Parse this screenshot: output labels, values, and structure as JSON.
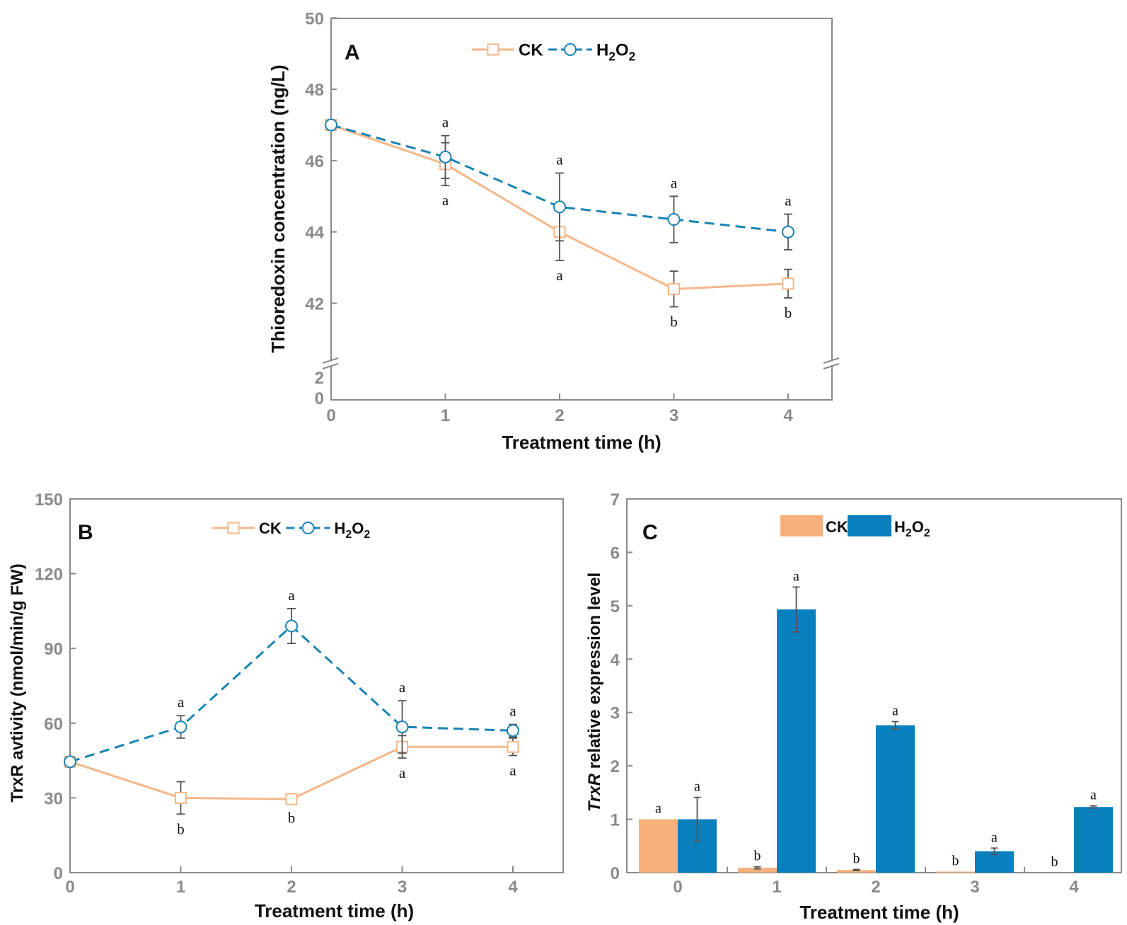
{
  "colors": {
    "ck_line": "#f5b78a",
    "ck_bar": "#f7b07a",
    "h2o2_line": "#1a83b4",
    "h2o2_bar": "#0a7fbe",
    "axis": "#8a8a8a",
    "tick_label": "#8a8a8a",
    "text": "#111111",
    "error": "#555555"
  },
  "chart_data": [
    {
      "panel": "A",
      "type": "line",
      "panel_label": "A",
      "xlabel": "Treatment time (h)",
      "ylabel": "Thioredoxin concentration  (ng/L)",
      "x": [
        0,
        1,
        2,
        3,
        4
      ],
      "x_tick_labels": [
        "0",
        "1",
        "2",
        "3",
        "4"
      ],
      "y_axis_break": true,
      "y_tick_labels_upper": [
        "42",
        "44",
        "46",
        "48",
        "50"
      ],
      "y_tick_labels_lower": [
        "0",
        "2"
      ],
      "ylim_upper": [
        40.5,
        50
      ],
      "ylim_lower": [
        0,
        2.7
      ],
      "legend": {
        "placement": "top-center",
        "entries": [
          {
            "series": "CK",
            "label": "CK"
          },
          {
            "series": "H2O2",
            "label_main": "H",
            "label_sub1": "2",
            "label_mid": "O",
            "label_sub2": "2"
          }
        ]
      },
      "series": [
        {
          "name": "CK",
          "marker": "square",
          "line": "solid",
          "values": [
            47.0,
            45.9,
            44.0,
            42.4,
            42.55
          ],
          "errors": [
            0.0,
            0.6,
            0.8,
            0.5,
            0.4
          ],
          "letters": [
            "",
            "a",
            "a",
            "b",
            "b"
          ],
          "letter_pos": "below"
        },
        {
          "name": "H2O2",
          "marker": "circle",
          "line": "dashed",
          "values": [
            47.0,
            46.1,
            44.7,
            44.35,
            44.0
          ],
          "errors": [
            0.0,
            0.6,
            0.95,
            0.65,
            0.5
          ],
          "letters": [
            "",
            "a",
            "a",
            "a",
            "a"
          ],
          "letter_pos": "above"
        }
      ]
    },
    {
      "panel": "B",
      "type": "line",
      "panel_label": "B",
      "xlabel": "Treatment time (h)",
      "ylabel": "TrxR avtivity (nmol/min/g FW)",
      "x": [
        0,
        1,
        2,
        3,
        4
      ],
      "x_tick_labels": [
        "0",
        "1",
        "2",
        "3",
        "4"
      ],
      "y_tick_labels": [
        "0",
        "30",
        "60",
        "90",
        "120",
        "150"
      ],
      "ylim": [
        0,
        150
      ],
      "legend": {
        "placement": "top-center",
        "entries": [
          {
            "series": "CK",
            "label": "CK"
          },
          {
            "series": "H2O2",
            "label_main": "H",
            "label_sub1": "2",
            "label_mid": "O",
            "label_sub2": "2"
          }
        ]
      },
      "series": [
        {
          "name": "CK",
          "marker": "square",
          "line": "solid",
          "values": [
            44.5,
            30,
            29.5,
            50.5,
            50.5
          ],
          "errors": [
            0,
            6.5,
            1.5,
            4.5,
            3.5
          ],
          "letters": [
            "",
            "b",
            "b",
            "a",
            "a"
          ],
          "letter_pos": "below"
        },
        {
          "name": "H2O2",
          "marker": "circle",
          "line": "dashed",
          "values": [
            44.5,
            58.5,
            99,
            58.5,
            57
          ],
          "errors": [
            0,
            4.5,
            7,
            10.5,
            2.5
          ],
          "letters": [
            "",
            "a",
            "a",
            "a",
            "a"
          ],
          "letter_pos": "above"
        }
      ]
    },
    {
      "panel": "C",
      "type": "bar",
      "panel_label": "C",
      "xlabel": "Treatment time (h)",
      "ylabel_italic": "TrxR",
      "ylabel_rest": " relative expression level",
      "categories": [
        "0",
        "1",
        "2",
        "3",
        "4"
      ],
      "y_tick_labels": [
        "0",
        "1",
        "2",
        "3",
        "4",
        "5",
        "6",
        "7"
      ],
      "ylim": [
        0,
        7
      ],
      "legend": {
        "placement": "top-center",
        "entries": [
          {
            "series": "CK",
            "label": "CK"
          },
          {
            "series": "H2O2",
            "label_main": "H",
            "label_sub1": "2",
            "label_mid": "O",
            "label_sub2": "2"
          }
        ]
      },
      "series": [
        {
          "name": "CK",
          "values": [
            1.0,
            0.09,
            0.05,
            0.02,
            0.0
          ],
          "errors": [
            0,
            0.02,
            0.01,
            0.0,
            0.0
          ],
          "letters": [
            "a",
            "b",
            "b",
            "b",
            "b"
          ]
        },
        {
          "name": "H2O2",
          "values": [
            1.0,
            4.93,
            2.76,
            0.4,
            1.23
          ],
          "errors": [
            0.41,
            0.42,
            0.07,
            0.06,
            0.02
          ],
          "letters": [
            "a",
            "a",
            "a",
            "a",
            "a"
          ]
        }
      ]
    }
  ]
}
